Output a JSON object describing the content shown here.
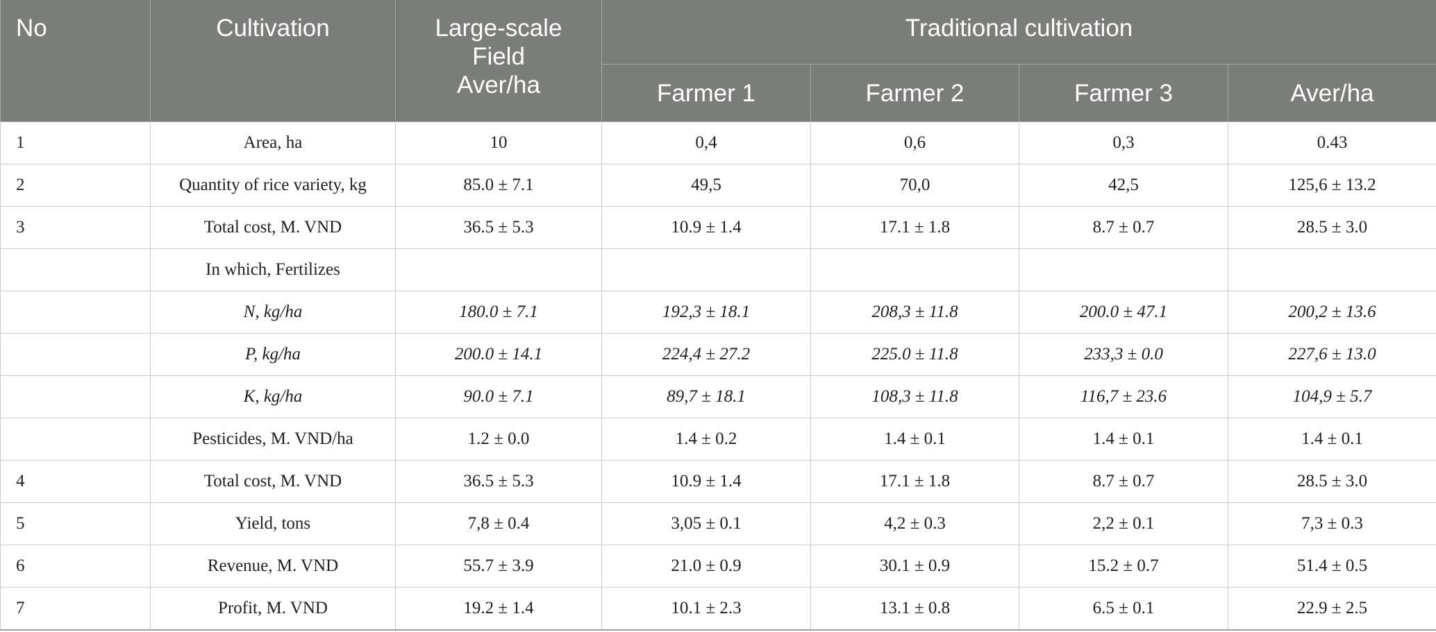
{
  "table": {
    "headers": {
      "no": "No",
      "cultivation": "Cultivation",
      "large_scale_line1": "Large-scale",
      "large_scale_line2": "Field",
      "large_scale_line3": "Aver/ha",
      "traditional": "Traditional cultivation",
      "farmer1": "Farmer 1",
      "farmer2": "Farmer 2",
      "farmer3": "Farmer 3",
      "aver": "Aver/ha"
    },
    "rows": [
      {
        "no": "1",
        "cultivation": "Area, ha",
        "large": "10",
        "f1": "0,4",
        "f2": "0,6",
        "f3": "0,3",
        "avg": "0.43"
      },
      {
        "no": "2",
        "cultivation": "Quantity of rice variety, kg",
        "large": "85.0 ± 7.1",
        "f1": "49,5",
        "f2": "70,0",
        "f3": "42,5",
        "avg": "125,6 ± 13.2"
      },
      {
        "no": "3",
        "cultivation": "Total cost, M. VND",
        "large": "36.5 ± 5.3",
        "f1": "10.9 ± 1.4",
        "f2": "17.1 ± 1.8",
        "f3": "8.7 ± 0.7",
        "avg": "28.5 ± 3.0"
      },
      {
        "no": "",
        "cultivation": "In which, Fertilizes",
        "large": "",
        "f1": "",
        "f2": "",
        "f3": "",
        "avg": ""
      },
      {
        "no": "",
        "cultivation": "N, kg/ha",
        "large": "180.0 ± 7.1",
        "f1": "192,3 ± 18.1",
        "f2": "208,3 ± 11.8",
        "f3": "200.0 ± 47.1",
        "avg": "200,2 ± 13.6"
      },
      {
        "no": "",
        "cultivation": "P, kg/ha",
        "large": "200.0 ± 14.1",
        "f1": "224,4 ± 27.2",
        "f2": "225.0 ± 11.8",
        "f3": "233,3 ± 0.0",
        "avg": "227,6 ± 13.0"
      },
      {
        "no": "",
        "cultivation": "K, kg/ha",
        "large": "90.0 ± 7.1",
        "f1": "89,7 ± 18.1",
        "f2": "108,3 ± 11.8",
        "f3": "116,7 ± 23.6",
        "avg": "104,9 ± 5.7"
      },
      {
        "no": "",
        "cultivation": "Pesticides, M. VND/ha",
        "large": "1.2 ± 0.0",
        "f1": "1.4 ± 0.2",
        "f2": "1.4 ± 0.1",
        "f3": "1.4 ± 0.1",
        "avg": "1.4 ± 0.1"
      },
      {
        "no": "4",
        "cultivation": "Total cost, M. VND",
        "large": "36.5 ± 5.3",
        "f1": "10.9 ± 1.4",
        "f2": "17.1 ± 1.8",
        "f3": "8.7 ± 0.7",
        "avg": "28.5 ± 3.0"
      },
      {
        "no": "5",
        "cultivation": "Yield, tons",
        "large": "7,8 ± 0.4",
        "f1": "3,05 ± 0.1",
        "f2": "4,2 ± 0.3",
        "f3": "2,2 ± 0.1",
        "avg": "7,3 ± 0.3"
      },
      {
        "no": "6",
        "cultivation": "Revenue, M. VND",
        "large": "55.7 ± 3.9",
        "f1": "21.0 ± 0.9",
        "f2": "30.1 ± 0.9",
        "f3": "15.2 ± 0.7",
        "avg": "51.4 ± 0.5"
      },
      {
        "no": "7",
        "cultivation": "Profit, M. VND",
        "large": "19.2 ± 1.4",
        "f1": "10.1 ± 2.3",
        "f2": "13.1 ± 0.8",
        "f3": "6.5 ± 0.1",
        "avg": "22.9 ± 2.5"
      }
    ]
  }
}
